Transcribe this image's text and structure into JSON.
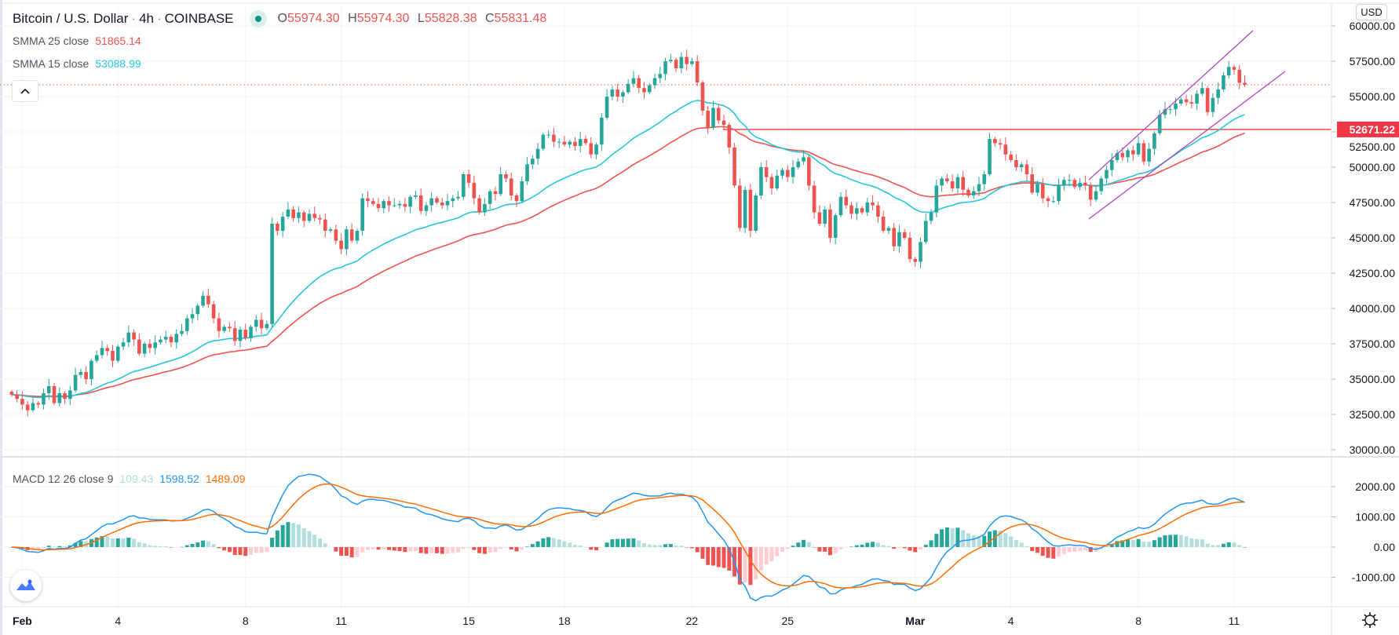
{
  "header": {
    "symbol": "Bitcoin / U.S. Dollar",
    "interval": "4h",
    "exchange": "COINBASE",
    "separator": "·",
    "market_status": "open",
    "ohlc": {
      "o_label": "O",
      "o": "55974.30",
      "h_label": "H",
      "h": "55974.30",
      "l_label": "L",
      "l": "55828.38",
      "c_label": "C",
      "c": "55831.48"
    }
  },
  "indicators": {
    "smma25": {
      "label": "SMMA 25 close",
      "value": "51865.14",
      "color": "#ef5350"
    },
    "smma15": {
      "label": "SMMA 15 close",
      "value": "53088.99",
      "color": "#26c6da"
    },
    "macd": {
      "label": "MACD 12 26 close 9",
      "hist": "109.43",
      "macd": "1598.52",
      "signal": "1489.09",
      "hist_color": "#b2dfdb",
      "macd_color": "#2196f3",
      "signal_color": "#ff6d00"
    }
  },
  "buttons": {
    "collapse_icon": "chevron-up",
    "currency": "USD",
    "settings_icon": "gear",
    "logo_icon": "tradingview-logo"
  },
  "price_axis": {
    "ticks": [
      "60000.00",
      "57500.00",
      "55000.00",
      "52500.00",
      "50000.00",
      "47500.00",
      "45000.00",
      "42500.00",
      "40000.00",
      "37500.00",
      "35000.00",
      "32500.00",
      "30000.00"
    ],
    "horizontal_line_label": "52671.22"
  },
  "macd_axis": {
    "ticks": [
      "2000.00",
      "1000.00",
      "0.00",
      "-1000.00"
    ]
  },
  "time_axis": {
    "labels": [
      "Feb",
      "4",
      "8",
      "11",
      "15",
      "18",
      "22",
      "25",
      "Mar",
      "4",
      "8",
      "11"
    ]
  },
  "colors": {
    "up": "#26a69a",
    "down": "#ef5350",
    "channel": "#ab47bc",
    "hline": "#f23645",
    "grid": "#f0f3fa"
  },
  "chart_data": {
    "type": "candlestick",
    "ylim": [
      30000,
      60000
    ],
    "macd_ylim": [
      -1500,
      2500
    ],
    "grid": true,
    "horizontal_line": 52671.22,
    "channel": "parallel ascending channel (Mar 6 – Mar 11)",
    "series": [
      {
        "name": "SMMA 25 close",
        "type": "line",
        "color": "#ef5350"
      },
      {
        "name": "SMMA 15 close",
        "type": "line",
        "color": "#26c6da"
      }
    ],
    "closes": [
      33900,
      33600,
      33200,
      32800,
      33300,
      33200,
      34000,
      34500,
      33300,
      34000,
      33600,
      34200,
      35300,
      35500,
      35000,
      36300,
      36700,
      37200,
      37000,
      36300,
      37300,
      37600,
      38300,
      37800,
      36800,
      37500,
      37200,
      37600,
      37800,
      38000,
      37600,
      38200,
      38400,
      39300,
      39600,
      40200,
      40900,
      40300,
      39300,
      38400,
      38700,
      38600,
      37700,
      38500,
      37900,
      38700,
      39200,
      38600,
      38900,
      46000,
      45500,
      46500,
      47000,
      46400,
      46800,
      46200,
      46700,
      46400,
      46300,
      45500,
      45600,
      44800,
      44200,
      45600,
      44800,
      45500,
      47800,
      47600,
      47400,
      47100,
      47600,
      47300,
      47300,
      47400,
      47200,
      47900,
      48000,
      46900,
      47300,
      47800,
      47500,
      47300,
      47600,
      47800,
      47900,
      49500,
      48900,
      47800,
      46800,
      47400,
      48300,
      48100,
      49500,
      49200,
      48000,
      47600,
      49000,
      50200,
      50600,
      51300,
      52300,
      52300,
      51800,
      51800,
      51600,
      51800,
      51500,
      52000,
      51700,
      50900,
      51600,
      53500,
      55000,
      55500,
      55000,
      55300,
      55900,
      56300,
      55600,
      55300,
      55800,
      56300,
      56600,
      57500,
      57600,
      57000,
      57800,
      57300,
      57500,
      56000,
      54000,
      52800,
      54200,
      53300,
      53000,
      51400,
      48700,
      45700,
      48400,
      45500,
      48000,
      50000,
      49300,
      48500,
      49400,
      49800,
      49300,
      50000,
      50400,
      50700,
      48700,
      46800,
      46000,
      47000,
      45000,
      46600,
      47900,
      47300,
      46700,
      47100,
      46800,
      47500,
      47300,
      46500,
      45500,
      45700,
      44400,
      45400,
      45000,
      43500,
      43300,
      44700,
      46200,
      46800,
      48700,
      49200,
      49000,
      48500,
      49300,
      48400,
      48000,
      48300,
      48800,
      49500,
      52000,
      51700,
      51600,
      50900,
      50500,
      50000,
      50200,
      49500,
      48200,
      48800,
      47800,
      47600,
      47600,
      48700,
      49100,
      49100,
      48600,
      48900,
      48700,
      47700,
      48300,
      49200,
      49800,
      50500,
      51000,
      50700,
      51200,
      50900,
      51700,
      50400,
      51300,
      52400,
      53700,
      54100,
      54100,
      54500,
      54800,
      54600,
      54500,
      55200,
      55600,
      53900,
      54900,
      55500,
      56500,
      57100,
      56900,
      55974.3,
      55831.48
    ]
  }
}
